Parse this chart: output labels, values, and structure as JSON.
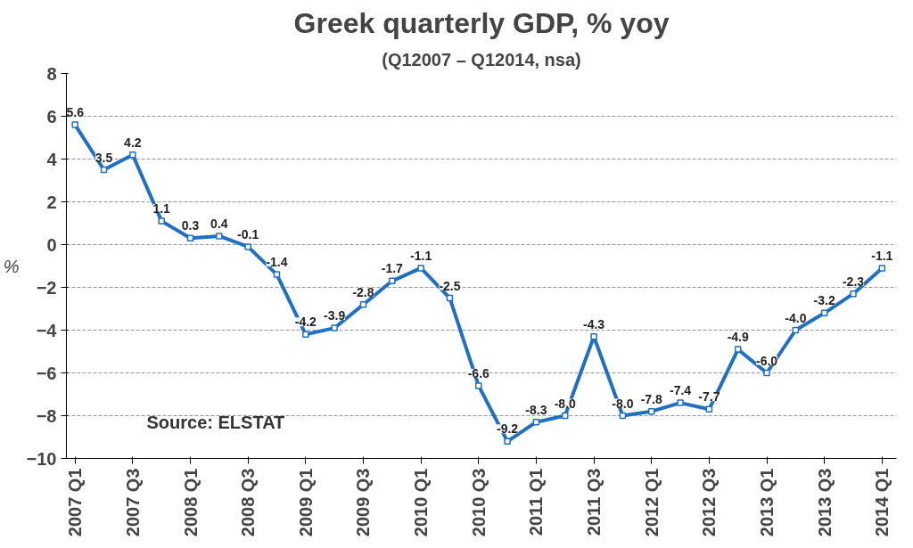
{
  "chart_data": {
    "type": "line",
    "title": "Greek quarterly GDP, % yoy",
    "subtitle": "(Q12007 – Q12014, nsa)",
    "ylabel": "%",
    "categories": [
      "2007 Q1",
      null,
      "2007 Q3",
      null,
      "2008 Q1",
      null,
      "2008 Q3",
      null,
      "2009 Q1",
      null,
      "2009 Q3",
      null,
      "2010 Q1",
      null,
      "2010 Q3",
      null,
      "2011 Q1",
      null,
      "2011 Q3",
      null,
      "2012 Q1",
      null,
      "2012 Q3",
      null,
      "2013 Q1",
      null,
      "2013 Q3",
      null,
      "2014 Q1"
    ],
    "series": [
      {
        "color": "#1f6fc5",
        "values": [
          5.6,
          3.5,
          4.2,
          1.1,
          0.3,
          0.4,
          -0.1,
          -1.4,
          -4.2,
          -3.9,
          -2.8,
          -1.7,
          -1.1,
          -2.5,
          -6.6,
          -9.2,
          -8.3,
          -8.0,
          -4.3,
          -8.0,
          -7.8,
          -7.4,
          -7.7,
          -4.9,
          -6.0,
          -4.0,
          -3.2,
          -2.3,
          -1.1
        ],
        "value_labels": [
          "5.6",
          "3.5",
          "4.2",
          "1.1",
          "0.3",
          "0.4",
          "-0.1",
          "-1.4",
          "-4.2",
          "-3.9",
          "-2.8",
          "-1.7",
          "-1.1",
          "-2.5",
          "-6.6",
          "-9.2",
          "-8.3",
          "-8.0",
          "-4.3",
          "-8.0",
          "-7.8",
          "-7.4",
          "-7.7",
          "-4.9",
          "-6.0",
          "-4.0",
          "-3.2",
          "-2.3",
          "-1.1"
        ]
      }
    ],
    "ylim": [
      -10,
      8
    ],
    "yticks": [
      -10,
      -8,
      -6,
      -4,
      -2,
      0,
      2,
      4,
      6,
      8
    ],
    "grid": "y",
    "marker": "square",
    "line_style": "solid",
    "annotations": [
      "Source: ELSTAT"
    ]
  }
}
